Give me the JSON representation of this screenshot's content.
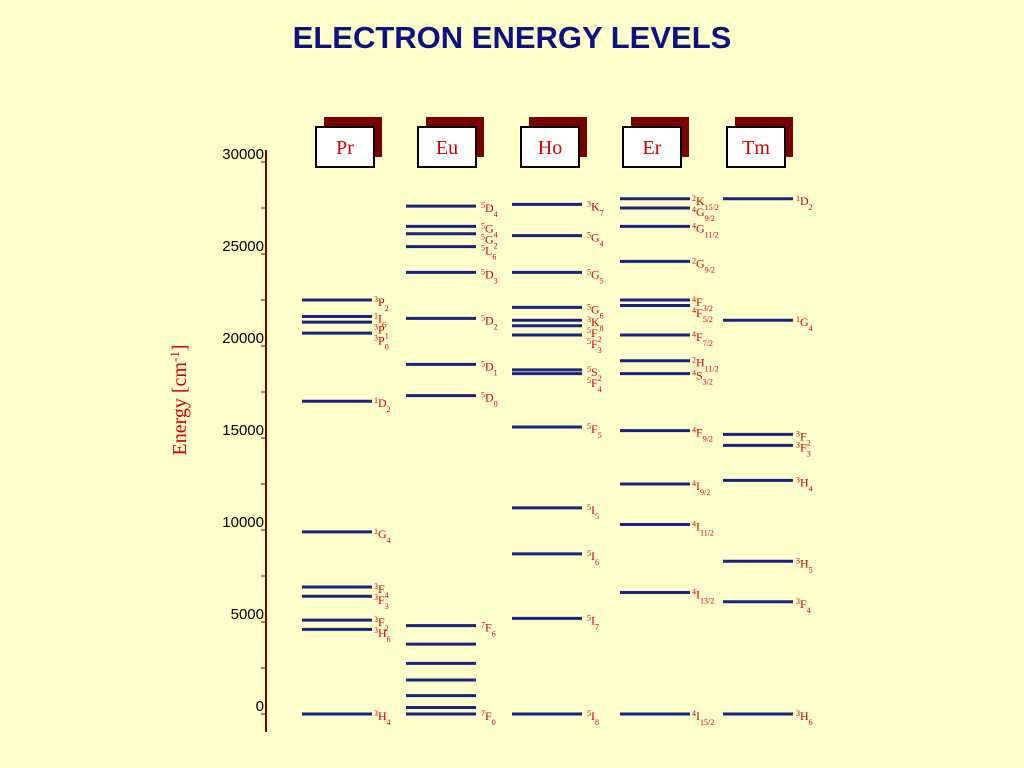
{
  "title": "ELECTRON ENERGY LEVELS",
  "colors": {
    "background": "#ffffcc",
    "level_line": "#1a237e",
    "label": "#cc0000",
    "title": "#0d1280",
    "box_shadow": "#7a0000",
    "axis": "#7a0000"
  },
  "y_axis": {
    "label": "Energy [cm",
    "label_sup": "-1",
    "label_end": "]",
    "range": [
      0,
      30000
    ],
    "ticks": [
      "0",
      "5000",
      "10000",
      "15000",
      "20000",
      "25000",
      "30000"
    ]
  },
  "chart_data": {
    "type": "energy-level-diagram",
    "ylim": [
      0,
      30000
    ],
    "ions": [
      {
        "name": "Pr",
        "levels": [
          {
            "energy": 0,
            "term": "H",
            "mult": "3",
            "j": "4"
          },
          {
            "energy": 4600,
            "term": "H",
            "mult": "3",
            "j": "6"
          },
          {
            "energy": 5100,
            "term": "F",
            "mult": "3",
            "j": "2"
          },
          {
            "energy": 6400,
            "term": "F",
            "mult": "3",
            "j": "3"
          },
          {
            "energy": 6900,
            "term": "F",
            "mult": "3",
            "j": "4"
          },
          {
            "energy": 9900,
            "term": "G",
            "mult": "1",
            "j": "4"
          },
          {
            "energy": 17000,
            "term": "D",
            "mult": "1",
            "j": "2"
          },
          {
            "energy": 20700,
            "term": "P",
            "mult": "3",
            "j": "0"
          },
          {
            "energy": 21300,
            "term": "P",
            "mult": "3",
            "j": "1"
          },
          {
            "energy": 21600,
            "term": "I",
            "mult": "1",
            "j": "6"
          },
          {
            "energy": 22500,
            "term": "P",
            "mult": "3",
            "j": "2"
          }
        ]
      },
      {
        "name": "Eu",
        "levels": [
          {
            "energy": 0,
            "term": "F",
            "mult": "7",
            "j": "0"
          },
          {
            "energy": 350
          },
          {
            "energy": 1000
          },
          {
            "energy": 1850
          },
          {
            "energy": 2750
          },
          {
            "energy": 3800
          },
          {
            "energy": 4800,
            "term": "F",
            "mult": "7",
            "j": "6"
          },
          {
            "energy": 17300,
            "term": "D",
            "mult": "5",
            "j": "0"
          },
          {
            "energy": 19000,
            "term": "D",
            "mult": "5",
            "j": "1"
          },
          {
            "energy": 21500,
            "term": "D",
            "mult": "5",
            "j": "2"
          },
          {
            "energy": 24000,
            "term": "D",
            "mult": "5",
            "j": "3"
          },
          {
            "energy": 25400,
            "term": "L",
            "mult": "5",
            "j": "6"
          },
          {
            "energy": 26100,
            "term": "G",
            "mult": "5",
            "j": "2"
          },
          {
            "energy": 26500,
            "term": "G",
            "mult": "5",
            "j": "4"
          },
          {
            "energy": 27600,
            "term": "D",
            "mult": "5",
            "j": "4"
          }
        ]
      },
      {
        "name": "Ho",
        "levels": [
          {
            "energy": 0,
            "term": "I",
            "mult": "5",
            "j": "8"
          },
          {
            "energy": 5200,
            "term": "I",
            "mult": "5",
            "j": "7"
          },
          {
            "energy": 8700,
            "term": "I",
            "mult": "5",
            "j": "6"
          },
          {
            "energy": 11200,
            "term": "I",
            "mult": "5",
            "j": "5"
          },
          {
            "energy": 15600,
            "term": "F",
            "mult": "5",
            "j": "5"
          },
          {
            "energy": 18500,
            "term": "F",
            "mult": "5",
            "j": "4"
          },
          {
            "energy": 18700,
            "term": "S",
            "mult": "5",
            "j": "2"
          },
          {
            "energy": 20600,
            "term": "F",
            "mult": "5",
            "j": "3"
          },
          {
            "energy": 21100,
            "term": "F",
            "mult": "5",
            "j": "2"
          },
          {
            "energy": 21400,
            "term": "K",
            "mult": "3",
            "j": "8"
          },
          {
            "energy": 22100,
            "term": "G",
            "mult": "5",
            "j": "6"
          },
          {
            "energy": 24000,
            "term": "G",
            "mult": "5",
            "j": "5"
          },
          {
            "energy": 26000,
            "term": "G",
            "mult": "5",
            "j": "4"
          },
          {
            "energy": 27700,
            "term": "K",
            "mult": "3",
            "j": "7"
          }
        ]
      },
      {
        "name": "Er",
        "levels": [
          {
            "energy": 0,
            "term": "I",
            "mult": "4",
            "j": "15/2"
          },
          {
            "energy": 6600,
            "term": "I",
            "mult": "4",
            "j": "13/2"
          },
          {
            "energy": 10300,
            "term": "I",
            "mult": "4",
            "j": "11/2"
          },
          {
            "energy": 12500,
            "term": "I",
            "mult": "4",
            "j": "9/2"
          },
          {
            "energy": 15400,
            "term": "F",
            "mult": "4",
            "j": "9/2"
          },
          {
            "energy": 18500,
            "term": "S",
            "mult": "4",
            "j": "3/2"
          },
          {
            "energy": 19200,
            "term": "H",
            "mult": "2",
            "j": "11/2"
          },
          {
            "energy": 20600,
            "term": "F",
            "mult": "4",
            "j": "7/2"
          },
          {
            "energy": 22200,
            "term": "F",
            "mult": "4",
            "j": "5/2"
          },
          {
            "energy": 22500,
            "term": "F",
            "mult": "4",
            "j": "3/2"
          },
          {
            "energy": 24600,
            "term": "G",
            "mult": "2",
            "j": "9/2"
          },
          {
            "energy": 26500,
            "term": "G",
            "mult": "4",
            "j": "11/2"
          },
          {
            "energy": 27500,
            "term": "G",
            "mult": "4",
            "j": "9/2"
          },
          {
            "energy": 28000,
            "term": "K",
            "mult": "2",
            "j": "15/2"
          }
        ]
      },
      {
        "name": "Tm",
        "levels": [
          {
            "energy": 0,
            "term": "H",
            "mult": "3",
            "j": "6"
          },
          {
            "energy": 6100,
            "term": "F",
            "mult": "3",
            "j": "4"
          },
          {
            "energy": 8300,
            "term": "H",
            "mult": "3",
            "j": "5"
          },
          {
            "energy": 12700,
            "term": "H",
            "mult": "3",
            "j": "4"
          },
          {
            "energy": 14600,
            "term": "F",
            "mult": "3",
            "j": "3"
          },
          {
            "energy": 15200,
            "term": "F",
            "mult": "3",
            "j": "2"
          },
          {
            "energy": 21400,
            "term": "G",
            "mult": "1",
            "j": "4"
          },
          {
            "energy": 28000,
            "term": "D",
            "mult": "1",
            "j": "2"
          }
        ]
      }
    ]
  }
}
